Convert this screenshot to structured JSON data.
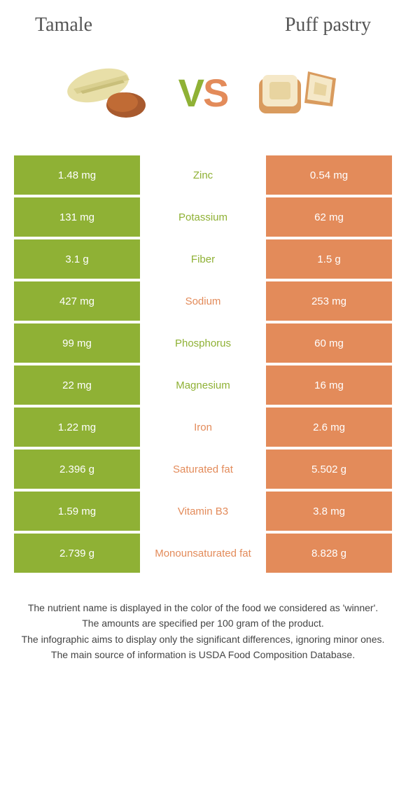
{
  "foods": {
    "left": {
      "name": "Tamale",
      "color": "#8fb135"
    },
    "right": {
      "name": "Puff pastry",
      "color": "#e38b5a"
    }
  },
  "vs_label": {
    "v": "V",
    "s": "S"
  },
  "colors": {
    "left_food": "#8fb135",
    "right_food": "#e38b5a",
    "bg": "#ffffff",
    "text": "#333333",
    "title_text": "#555555",
    "footer_text": "#444444",
    "cell_text": "#ffffff"
  },
  "table": {
    "type": "comparison-table",
    "rows": [
      {
        "nutrient": "Zinc",
        "left": "1.48 mg",
        "right": "0.54 mg",
        "winner": "left"
      },
      {
        "nutrient": "Potassium",
        "left": "131 mg",
        "right": "62 mg",
        "winner": "left"
      },
      {
        "nutrient": "Fiber",
        "left": "3.1 g",
        "right": "1.5 g",
        "winner": "left"
      },
      {
        "nutrient": "Sodium",
        "left": "427 mg",
        "right": "253 mg",
        "winner": "right"
      },
      {
        "nutrient": "Phosphorus",
        "left": "99 mg",
        "right": "60 mg",
        "winner": "left"
      },
      {
        "nutrient": "Magnesium",
        "left": "22 mg",
        "right": "16 mg",
        "winner": "left"
      },
      {
        "nutrient": "Iron",
        "left": "1.22 mg",
        "right": "2.6 mg",
        "winner": "right"
      },
      {
        "nutrient": "Saturated fat",
        "left": "2.396 g",
        "right": "5.502 g",
        "winner": "right"
      },
      {
        "nutrient": "Vitamin B3",
        "left": "1.59 mg",
        "right": "3.8 mg",
        "winner": "right"
      },
      {
        "nutrient": "Monounsaturated fat",
        "left": "2.739 g",
        "right": "8.828 g",
        "winner": "right"
      }
    ]
  },
  "footer": {
    "line1": "The nutrient name is displayed in the color of the food we considered as 'winner'.",
    "line2": "The amounts are specified per 100 gram of the product.",
    "line3": "The infographic aims to display only the significant differences, ignoring minor ones.",
    "line4": "The main source of information is USDA Food Composition Database."
  }
}
